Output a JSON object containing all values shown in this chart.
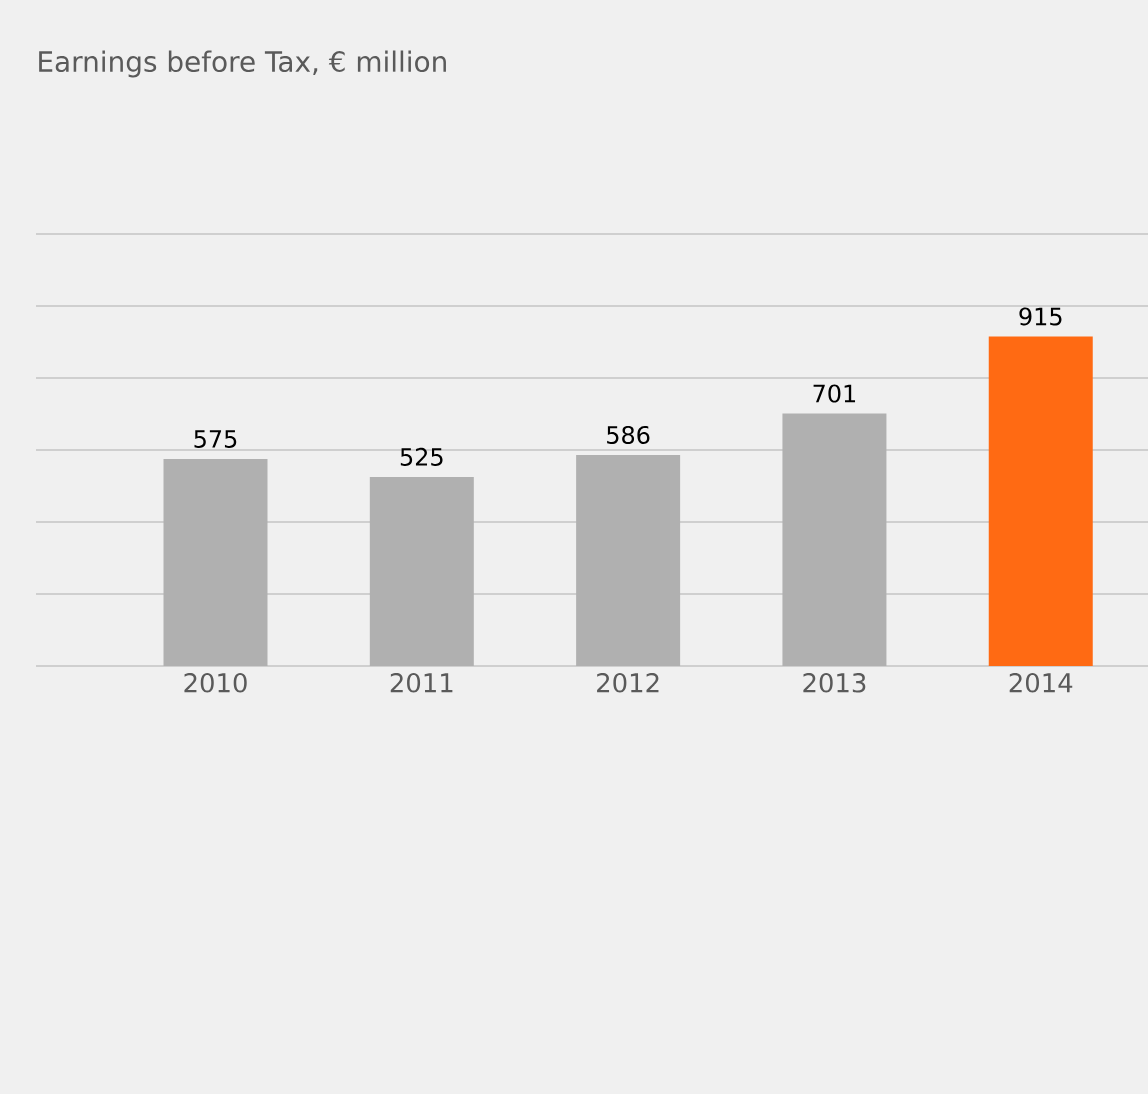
{
  "chart_data": {
    "type": "bar",
    "title": "Earnings before Tax, € million",
    "categories": [
      "2010",
      "2011",
      "2012",
      "2013",
      "2014"
    ],
    "values": [
      575,
      525,
      586,
      701,
      915
    ],
    "colors": [
      "#b0b0b0",
      "#b0b0b0",
      "#b0b0b0",
      "#b0b0b0",
      "#ff6a13"
    ],
    "ylim": [
      0,
      1200
    ],
    "yticks": [
      {
        "value": 0,
        "label": null
      },
      {
        "value": 200,
        "label": null
      },
      {
        "value": 400,
        "label": null
      },
      {
        "value": 600,
        "label": null
      },
      {
        "value": 800,
        "label": null
      },
      {
        "value": 1000,
        "label": null
      },
      {
        "value": 1200,
        "label": null
      }
    ],
    "grid": "y",
    "data_labels": true,
    "tick_labels": "x"
  }
}
